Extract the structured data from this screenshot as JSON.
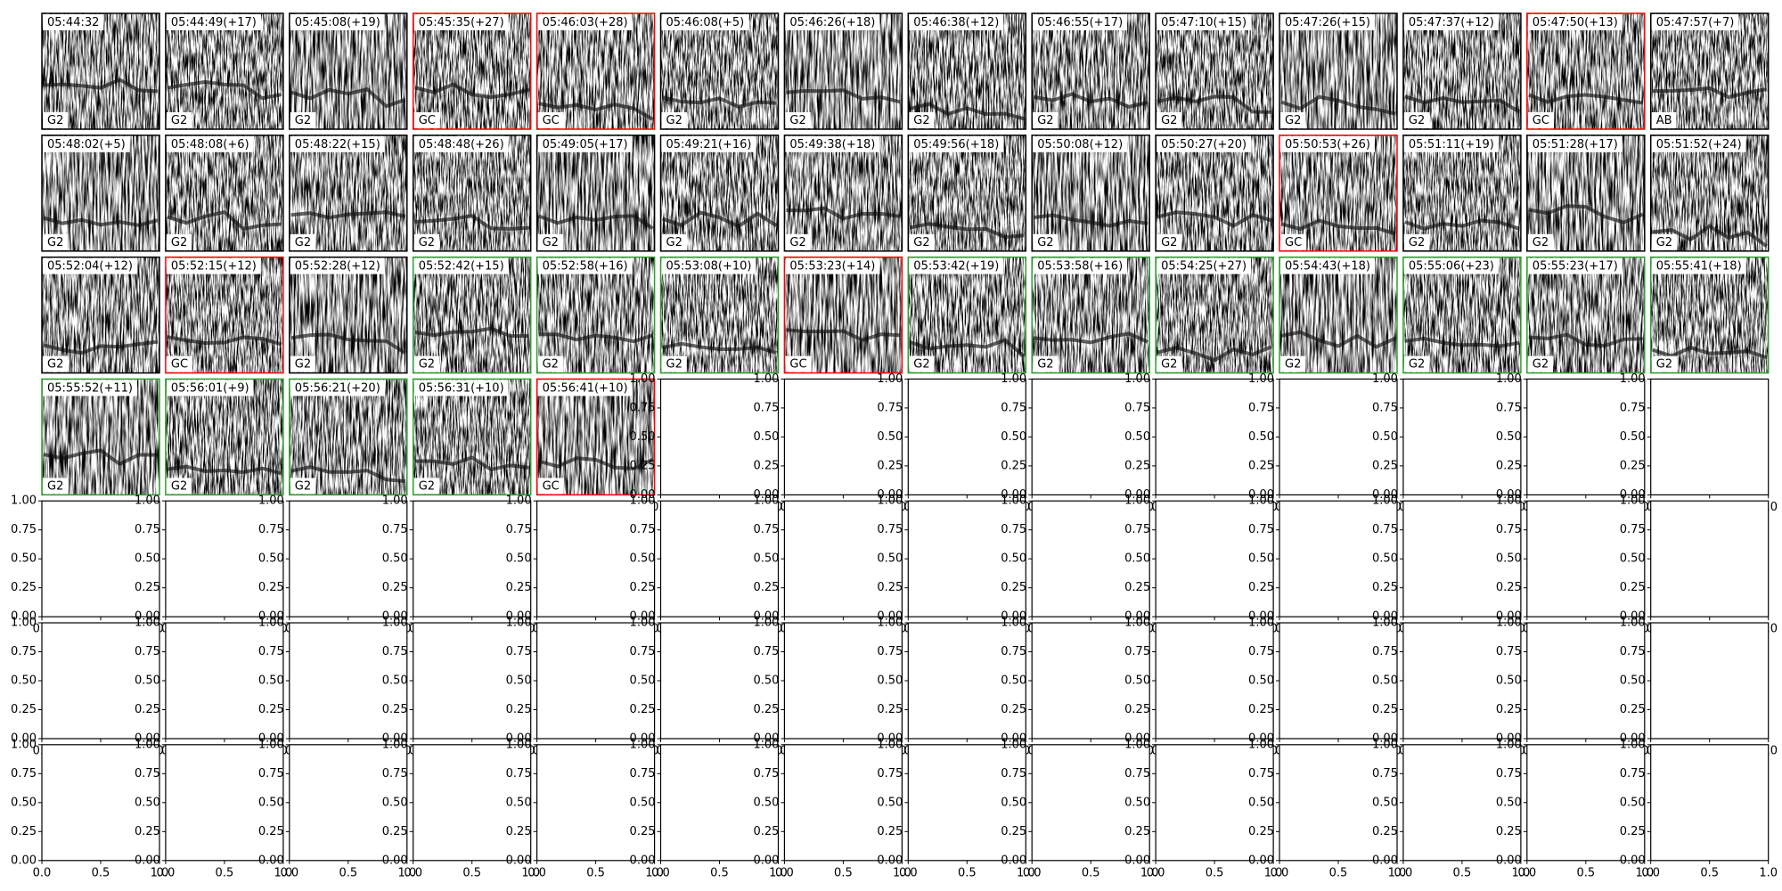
{
  "panels": [
    {
      "title": "05:44:32",
      "label": "G2",
      "border": "#000000"
    },
    {
      "title": "05:44:49(+17)",
      "label": "G2",
      "border": "#000000"
    },
    {
      "title": "05:45:08(+19)",
      "label": "G2",
      "border": "#000000"
    },
    {
      "title": "05:45:35(+27)",
      "label": "GC",
      "border": "#ff0000"
    },
    {
      "title": "05:46:03(+28)",
      "label": "GC",
      "border": "#ff0000"
    },
    {
      "title": "05:46:08(+5)",
      "label": "G2",
      "border": "#000000"
    },
    {
      "title": "05:46:26(+18)",
      "label": "G2",
      "border": "#000000"
    },
    {
      "title": "05:46:38(+12)",
      "label": "G2",
      "border": "#000000"
    },
    {
      "title": "05:46:55(+17)",
      "label": "G2",
      "border": "#000000"
    },
    {
      "title": "05:47:10(+15)",
      "label": "G2",
      "border": "#000000"
    },
    {
      "title": "05:47:26(+15)",
      "label": "G2",
      "border": "#000000"
    },
    {
      "title": "05:47:37(+12)",
      "label": "G2",
      "border": "#000000"
    },
    {
      "title": "05:47:50(+13)",
      "label": "GC",
      "border": "#ff0000"
    },
    {
      "title": "05:47:57(+7)",
      "label": "AB",
      "border": "#000000"
    },
    {
      "title": "05:48:02(+5)",
      "label": "G2",
      "border": "#000000"
    },
    {
      "title": "05:48:08(+6)",
      "label": "G2",
      "border": "#000000"
    },
    {
      "title": "05:48:22(+15)",
      "label": "G2",
      "border": "#000000"
    },
    {
      "title": "05:48:48(+26)",
      "label": "G2",
      "border": "#000000"
    },
    {
      "title": "05:49:05(+17)",
      "label": "G2",
      "border": "#000000"
    },
    {
      "title": "05:49:21(+16)",
      "label": "G2",
      "border": "#000000"
    },
    {
      "title": "05:49:38(+18)",
      "label": "G2",
      "border": "#000000"
    },
    {
      "title": "05:49:56(+18)",
      "label": "G2",
      "border": "#000000"
    },
    {
      "title": "05:50:08(+12)",
      "label": "G2",
      "border": "#000000"
    },
    {
      "title": "05:50:27(+20)",
      "label": "G2",
      "border": "#000000"
    },
    {
      "title": "05:50:53(+26)",
      "label": "GC",
      "border": "#ff0000"
    },
    {
      "title": "05:51:11(+19)",
      "label": "G2",
      "border": "#000000"
    },
    {
      "title": "05:51:28(+17)",
      "label": "G2",
      "border": "#000000"
    },
    {
      "title": "05:51:52(+24)",
      "label": "G2",
      "border": "#000000"
    },
    {
      "title": "05:52:04(+12)",
      "label": "G2",
      "border": "#000000"
    },
    {
      "title": "05:52:15(+12)",
      "label": "GC",
      "border": "#ff0000"
    },
    {
      "title": "05:52:28(+12)",
      "label": "G2",
      "border": "#000000"
    },
    {
      "title": "05:52:42(+15)",
      "label": "G2",
      "border": "#2ca02c"
    },
    {
      "title": "05:52:58(+16)",
      "label": "G2",
      "border": "#2ca02c"
    },
    {
      "title": "05:53:08(+10)",
      "label": "G2",
      "border": "#2ca02c"
    },
    {
      "title": "05:53:23(+14)",
      "label": "GC",
      "border": "#ff0000"
    },
    {
      "title": "05:53:42(+19)",
      "label": "G2",
      "border": "#2ca02c"
    },
    {
      "title": "05:53:58(+16)",
      "label": "G2",
      "border": "#2ca02c"
    },
    {
      "title": "05:54:25(+27)",
      "label": "G2",
      "border": "#2ca02c"
    },
    {
      "title": "05:54:43(+18)",
      "label": "G2",
      "border": "#2ca02c"
    },
    {
      "title": "05:55:06(+23)",
      "label": "G2",
      "border": "#2ca02c"
    },
    {
      "title": "05:55:23(+17)",
      "label": "G2",
      "border": "#2ca02c"
    },
    {
      "title": "05:55:41(+18)",
      "label": "G2",
      "border": "#2ca02c"
    },
    {
      "title": "05:55:52(+11)",
      "label": "G2",
      "border": "#2ca02c"
    },
    {
      "title": "05:56:01(+9)",
      "label": "G2",
      "border": "#2ca02c"
    },
    {
      "title": "05:56:21(+20)",
      "label": "G2",
      "border": "#2ca02c"
    },
    {
      "title": "05:56:31(+10)",
      "label": "G2",
      "border": "#2ca02c"
    },
    {
      "title": "05:56:41(+10)",
      "label": "GC",
      "border": "#ff0000"
    }
  ],
  "empty_axes": {
    "xlim": [
      0,
      1
    ],
    "ylim": [
      0,
      1
    ],
    "xticks": [
      {
        "value": 0,
        "label": "0.0"
      },
      {
        "value": 0.5,
        "label": "0.5"
      },
      {
        "value": 1,
        "label": "1.0"
      }
    ],
    "yticks": [
      {
        "value": 0,
        "label": "0.00"
      },
      {
        "value": 0.25,
        "label": "0.25"
      },
      {
        "value": 0.5,
        "label": "0.50"
      },
      {
        "value": 0.75,
        "label": "0.75"
      },
      {
        "value": 1,
        "label": "1.00"
      }
    ]
  }
}
